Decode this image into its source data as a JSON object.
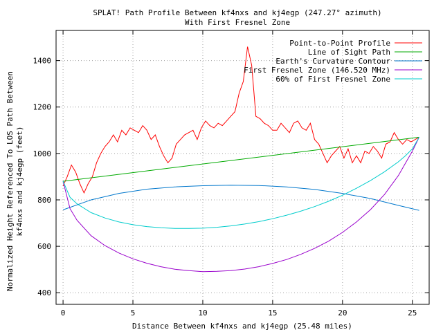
{
  "chart_data": {
    "type": "line",
    "title": "SPLAT! Path Profile Between kf4nxs and kj4egp (247.27° azimuth)",
    "subtitle": "With First Fresnel Zone",
    "xlabel": "Distance Between kf4nxs and kj4egp (25.48 miles)",
    "ylabel_line1": "Normalized Height Referenced To LOS Path Between",
    "ylabel_line2": "kf4nxs and kj4egp (feet)",
    "xlim": [
      -0.5,
      26.2
    ],
    "ylim": [
      350,
      1530
    ],
    "xticks": [
      0,
      5,
      10,
      15,
      20,
      25
    ],
    "yticks": [
      400,
      600,
      800,
      1000,
      1200,
      1400
    ],
    "grid": true,
    "legend_position": "top-right",
    "series": [
      {
        "name": "Point-to-Point Profile",
        "color": "#ff0000",
        "x": [
          0,
          0.3,
          0.6,
          0.9,
          1.2,
          1.5,
          1.8,
          2.1,
          2.4,
          2.7,
          3.0,
          3.3,
          3.6,
          3.9,
          4.2,
          4.5,
          4.8,
          5.1,
          5.4,
          5.7,
          6.0,
          6.3,
          6.6,
          6.9,
          7.2,
          7.5,
          7.8,
          8.1,
          8.4,
          8.7,
          9.0,
          9.3,
          9.6,
          9.9,
          10.2,
          10.5,
          10.8,
          11.1,
          11.4,
          11.7,
          12.0,
          12.3,
          12.6,
          12.9,
          13.2,
          13.5,
          13.8,
          14.1,
          14.4,
          14.7,
          15.0,
          15.3,
          15.6,
          15.9,
          16.2,
          16.5,
          16.8,
          17.1,
          17.4,
          17.7,
          18.0,
          18.3,
          18.6,
          18.9,
          19.2,
          19.5,
          19.8,
          20.1,
          20.4,
          20.7,
          21.0,
          21.3,
          21.6,
          21.9,
          22.2,
          22.5,
          22.8,
          23.1,
          23.4,
          23.7,
          24.0,
          24.3,
          24.6,
          24.9,
          25.2,
          25.48
        ],
        "values": [
          860,
          900,
          950,
          920,
          870,
          830,
          870,
          900,
          960,
          1000,
          1030,
          1050,
          1080,
          1050,
          1100,
          1080,
          1110,
          1100,
          1090,
          1120,
          1100,
          1060,
          1080,
          1030,
          990,
          960,
          980,
          1040,
          1060,
          1080,
          1090,
          1100,
          1060,
          1110,
          1140,
          1120,
          1110,
          1130,
          1120,
          1140,
          1160,
          1180,
          1260,
          1310,
          1460,
          1380,
          1160,
          1150,
          1130,
          1120,
          1100,
          1100,
          1130,
          1110,
          1090,
          1130,
          1140,
          1110,
          1100,
          1130,
          1060,
          1040,
          1000,
          960,
          990,
          1010,
          1030,
          980,
          1020,
          960,
          990,
          960,
          1010,
          1000,
          1030,
          1010,
          980,
          1040,
          1050,
          1090,
          1060,
          1040,
          1060,
          1050,
          1060,
          1070
        ]
      },
      {
        "name": "Line of Sight Path",
        "color": "#00aa00",
        "x": [
          0,
          25.48
        ],
        "values": [
          880,
          1070
        ]
      },
      {
        "name": "Earth's Curvature Contour",
        "color": "#0077cc",
        "x": [
          0,
          2,
          4,
          6,
          8,
          10,
          12,
          14,
          16,
          18,
          20,
          22,
          24,
          25.48
        ],
        "values": [
          757,
          800,
          828,
          846,
          856,
          861,
          863,
          862,
          856,
          845,
          828,
          806,
          776,
          755
        ]
      },
      {
        "name": "First Fresnel Zone (146.520 MHz)",
        "color": "#9900cc",
        "x": [
          0,
          0.5,
          1,
          2,
          3,
          4,
          5,
          6,
          7,
          8,
          9,
          10,
          11,
          12,
          13,
          14,
          15,
          16,
          17,
          18,
          19,
          20,
          21,
          22,
          23,
          24,
          24.5,
          25,
          25.48
        ],
        "values": [
          880,
          762,
          712,
          646,
          603,
          571,
          546,
          527,
          512,
          501,
          495,
          491,
          492,
          495,
          502,
          512,
          526,
          543,
          565,
          591,
          622,
          660,
          705,
          758,
          823,
          905,
          958,
          1010,
          1070
        ]
      },
      {
        "name": "60% of First Fresnel Zone",
        "color": "#00cccc",
        "x": [
          0,
          0.5,
          1,
          2,
          3,
          4,
          5,
          6,
          7,
          8,
          9,
          10,
          11,
          12,
          13,
          14,
          15,
          16,
          17,
          18,
          19,
          20,
          21,
          22,
          23,
          24,
          24.5,
          25,
          25.48
        ],
        "values": [
          880,
          811,
          783,
          745,
          722,
          705,
          693,
          685,
          680,
          677,
          677,
          678,
          682,
          688,
          696,
          706,
          719,
          734,
          751,
          771,
          794,
          820,
          850,
          883,
          921,
          964,
          990,
          1020,
          1070
        ]
      }
    ]
  }
}
